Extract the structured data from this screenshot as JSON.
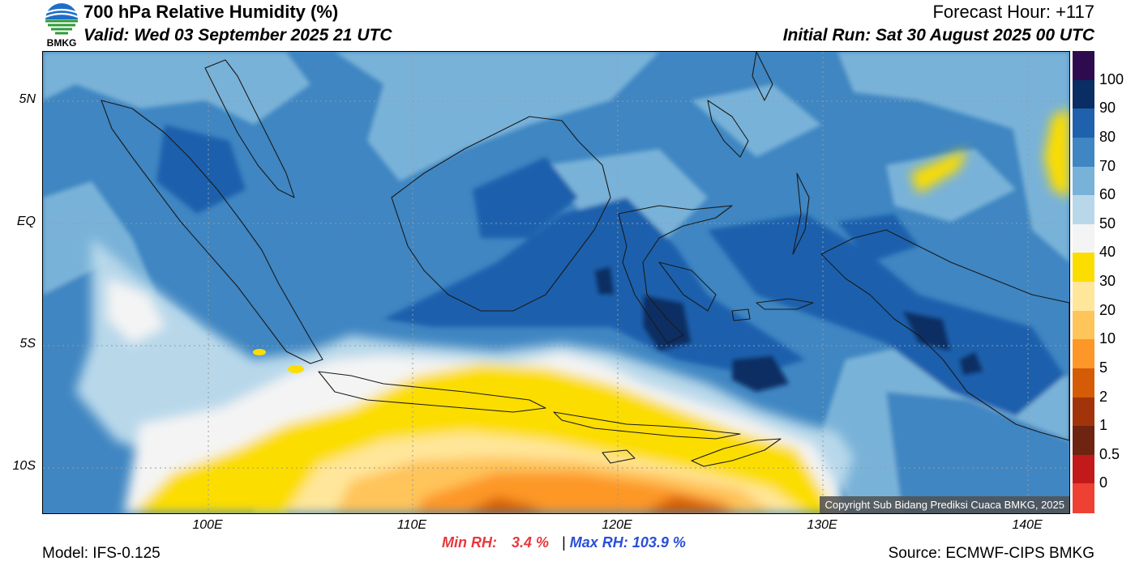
{
  "header": {
    "title": "700 hPa Relative Humidity (%)",
    "valid": "Valid: Wed 03 September 2025 21 UTC",
    "forecast_hour": "Forecast Hour: +117",
    "initial_run": "Initial Run: Sat 30 August 2025 00 UTC",
    "logo_text": "BMKG"
  },
  "map": {
    "lat_labels": [
      "5N",
      "EQ",
      "5S",
      "10S"
    ],
    "lon_labels": [
      "100E",
      "110E",
      "120E",
      "130E",
      "140E"
    ],
    "copyright": "Copyright Sub Bidang Prediksi Cuaca BMKG, 2025"
  },
  "colorbar": {
    "labels": [
      "100",
      "90",
      "80",
      "70",
      "60",
      "50",
      "40",
      "30",
      "20",
      "10",
      "5",
      "2",
      "1",
      "0.5",
      "0"
    ],
    "colors": [
      "#2e0a4e",
      "#0a2d63",
      "#1f61ad",
      "#3f86c2",
      "#79b2d8",
      "#b8d8ea",
      "#f4f4f4",
      "#fcdd00",
      "#ffe69a",
      "#ffc45a",
      "#fd9727",
      "#d45c06",
      "#a2340b",
      "#6e2410",
      "#c21a1a",
      "#ee4033"
    ]
  },
  "stats": {
    "min_label": "Min RH:",
    "min_value": "3.4 %",
    "separator": "|",
    "max_label": "Max RH:",
    "max_value": "103.9 %",
    "min_color": "#e8383d",
    "max_color": "#2a4fd6"
  },
  "footer": {
    "model": "Model: IFS-0.125",
    "source": "Source: ECMWF-CIPS BMKG"
  }
}
